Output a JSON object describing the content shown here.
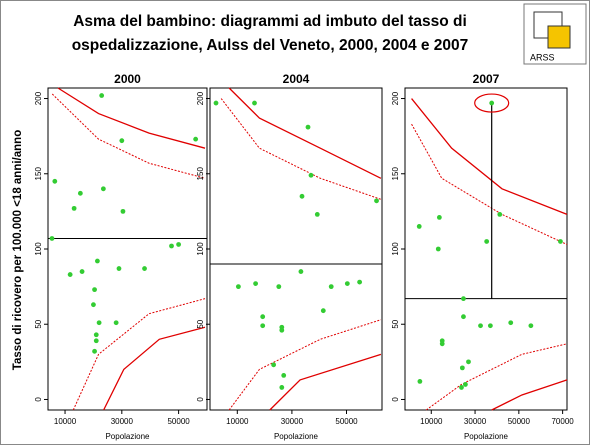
{
  "header": {
    "title_lines": [
      "Asma del bambino: diagrammi ad imbuto del tasso di",
      "ospedalizzazione, Aulss del Veneto, 2000, 2004 e 2007"
    ],
    "logo": "ARSS",
    "y_label": "Tasso di ricovero per 100.000 <18 anni/anno"
  },
  "chart_data": [
    {
      "type": "scatter",
      "title": "2000",
      "x_label": "Popolazione",
      "color": "#33cc33",
      "x": [
        22900,
        56000,
        30000,
        6400,
        15400,
        23500,
        13200,
        30400,
        5400,
        11800,
        16000,
        21400,
        29000,
        38000,
        50000,
        47500,
        20400,
        20000,
        22000,
        21000,
        21000,
        20400,
        28000
      ],
      "values": [
        202,
        173,
        172,
        145,
        137,
        140,
        127,
        125,
        107,
        83,
        85,
        92,
        87,
        87,
        103,
        102,
        73,
        63,
        51,
        43,
        39,
        32,
        51
      ],
      "xlim": [
        4000,
        60000
      ],
      "xticks": [
        10000,
        30000,
        50000
      ],
      "ylim": [
        -7,
        207
      ],
      "yticks": [
        0,
        50,
        100,
        150,
        200
      ],
      "mean": 107,
      "curves": [
        {
          "color": "#e00000",
          "dash": false,
          "x": [
            7500,
            21800,
            39600,
            59300
          ],
          "y": [
            207,
            190,
            177,
            167
          ]
        },
        {
          "color": "#e00000",
          "dash": true,
          "x": [
            5500,
            21800,
            39600,
            59300
          ],
          "y": [
            203,
            173,
            157,
            147
          ]
        },
        {
          "color": "#e00000",
          "dash": true,
          "x": [
            12900,
            21800,
            39600,
            59300
          ],
          "y": [
            -7,
            30,
            57,
            67
          ]
        },
        {
          "color": "#e00000",
          "dash": false,
          "x": [
            23600,
            30700,
            43200,
            59300
          ],
          "y": [
            -7,
            20,
            40,
            48
          ]
        }
      ]
    },
    {
      "type": "scatter",
      "title": "2004",
      "x_label": "Popolazione",
      "color": "#33cc33",
      "x": [
        2200,
        16300,
        35900,
        37000,
        33700,
        39300,
        61000,
        10400,
        16700,
        25200,
        33300,
        44400,
        50300,
        54800,
        19300,
        19300,
        26300,
        26300,
        41500,
        23300,
        27000,
        26300
      ],
      "values": [
        197,
        197,
        181,
        149,
        135,
        123,
        132,
        75,
        77,
        75,
        85,
        75,
        77,
        78,
        55,
        49,
        48,
        46,
        59,
        23,
        16,
        8
      ],
      "xlim": [
        0,
        63000
      ],
      "xticks": [
        10000,
        30000,
        50000
      ],
      "ylim": [
        -7,
        207
      ],
      "yticks": [
        0,
        50,
        100,
        150,
        200
      ],
      "mean": 90,
      "curves": [
        {
          "color": "#e00000",
          "dash": false,
          "x": [
            7000,
            18100,
            40400,
            62600
          ],
          "y": [
            207,
            187,
            167,
            147
          ]
        },
        {
          "color": "#e00000",
          "dash": true,
          "x": [
            4100,
            18100,
            40400,
            62600
          ],
          "y": [
            200,
            167,
            147,
            133
          ]
        },
        {
          "color": "#e00000",
          "dash": true,
          "x": [
            7000,
            18100,
            40400,
            62600
          ],
          "y": [
            -7,
            20,
            40,
            53
          ]
        },
        {
          "color": "#e00000",
          "dash": false,
          "x": [
            21900,
            33000,
            62600
          ],
          "y": [
            -7,
            13,
            30
          ]
        }
      ]
    },
    {
      "type": "scatter",
      "title": "2007",
      "x_label": "Popolazione",
      "color": "#33cc33",
      "x": [
        37600,
        41300,
        13700,
        4500,
        13200,
        35300,
        69000,
        24700,
        24700,
        32500,
        37000,
        46300,
        55500,
        15000,
        15000,
        27000,
        24200,
        4800,
        25600,
        23800
      ],
      "values": [
        197,
        123,
        121,
        115,
        100,
        105,
        105,
        67,
        55,
        49,
        49,
        51,
        49,
        39,
        37,
        25,
        21,
        12,
        10,
        8
      ],
      "xlim": [
        -2000,
        72000
      ],
      "xticks": [
        10000,
        30000,
        50000,
        70000
      ],
      "ylim": [
        -7,
        207
      ],
      "yticks": [
        0,
        50,
        100,
        150,
        200
      ],
      "mean": 67,
      "highlight": 0,
      "curves": [
        {
          "color": "#e00000",
          "dash": false,
          "x": [
            1000,
            19300,
            42300,
            72000
          ],
          "y": [
            200,
            167,
            140,
            123
          ]
        },
        {
          "color": "#e00000",
          "dash": true,
          "x": [
            1000,
            14800,
            42300,
            72000
          ],
          "y": [
            183,
            147,
            123,
            103
          ]
        },
        {
          "color": "#e00000",
          "dash": true,
          "x": [
            7700,
            23800,
            51400,
            72000
          ],
          "y": [
            -7,
            10,
            30,
            37
          ]
        },
        {
          "color": "#e00000",
          "dash": false,
          "x": [
            37600,
            51400,
            72000
          ],
          "y": [
            -7,
            3,
            13
          ]
        }
      ]
    }
  ]
}
